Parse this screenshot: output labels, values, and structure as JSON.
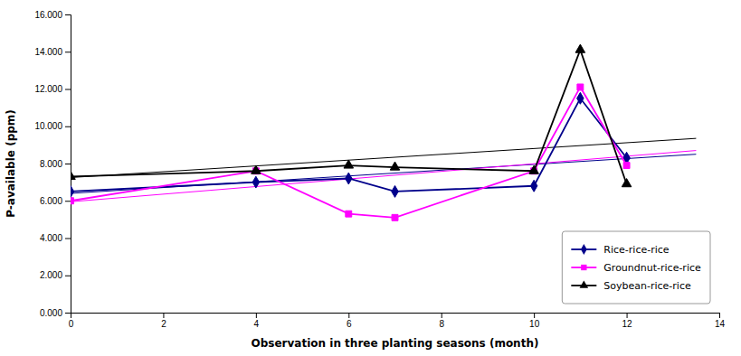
{
  "chart_data": {
    "type": "line",
    "x_label": "Observation in three planting seasons (month)",
    "y_label": "P-available (ppm)",
    "x": [
      0,
      4,
      6,
      7,
      10,
      11,
      12
    ],
    "series": [
      {
        "name": "Rice-rice-rice",
        "color": "#00008B",
        "marker": "diamond",
        "values": [
          6.5,
          7.0,
          7.2,
          6.5,
          6.8,
          11.5,
          8.3
        ]
      },
      {
        "name": "Groundnut-rice-rice",
        "color": "#FF00FF",
        "marker": "square",
        "values": [
          6.0,
          7.6,
          5.3,
          5.1,
          7.6,
          12.1,
          7.9
        ]
      },
      {
        "name": "Soybean-rice-rice",
        "color": "#000000",
        "marker": "triangle",
        "values": [
          7.3,
          7.6,
          7.9,
          7.8,
          7.6,
          14.1,
          6.9
        ]
      }
    ],
    "trend_lines": [
      {
        "color": "#00008B",
        "x": [
          0,
          13.5
        ],
        "values": [
          6.4,
          8.5
        ]
      },
      {
        "color": "#FF00FF",
        "x": [
          0,
          13.5
        ],
        "values": [
          5.95,
          8.7
        ]
      },
      {
        "color": "#000000",
        "x": [
          0,
          13.5
        ],
        "values": [
          7.25,
          9.35
        ]
      }
    ],
    "xlim": [
      0,
      14
    ],
    "ylim": [
      0.0,
      16.0
    ],
    "xticks": [
      0,
      2,
      4,
      6,
      8,
      10,
      12,
      14
    ],
    "yticks": [
      {
        "value": 0.0,
        "label": "0.000"
      },
      {
        "value": 2.0,
        "label": "2.000"
      },
      {
        "value": 4.0,
        "label": "4.000"
      },
      {
        "value": 6.0,
        "label": "6.000"
      },
      {
        "value": 8.0,
        "label": "8.000"
      },
      {
        "value": 10.0,
        "label": "10.000"
      },
      {
        "value": 12.0,
        "label": "12.000"
      },
      {
        "value": 14.0,
        "label": "14.000"
      },
      {
        "value": 16.0,
        "label": "16.000"
      }
    ],
    "grid": false,
    "legend": "lower right"
  }
}
